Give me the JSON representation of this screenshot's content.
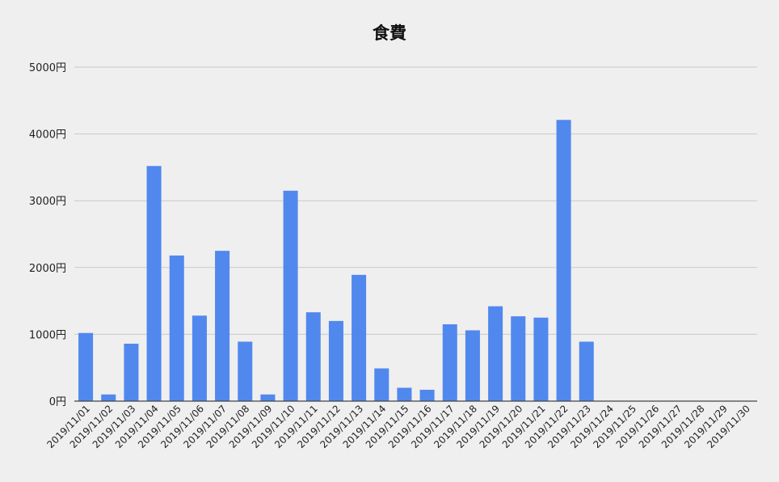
{
  "chart_data": {
    "type": "bar",
    "title": "食費",
    "xlabel": "",
    "ylabel": "",
    "ylim": [
      0,
      5000
    ],
    "y_ticks": [
      "0円",
      "1000円",
      "2000円",
      "3000円",
      "4000円",
      "5000円"
    ],
    "grid": true,
    "legend": "none",
    "bar_color": "#5188ee",
    "categories": [
      "2019/11/01",
      "2019/11/02",
      "2019/11/03",
      "2019/11/04",
      "2019/11/05",
      "2019/11/06",
      "2019/11/07",
      "2019/11/08",
      "2019/11/09",
      "2019/11/10",
      "2019/11/11",
      "2019/11/12",
      "2019/11/13",
      "2019/11/14",
      "2019/11/15",
      "2019/11/16",
      "2019/11/17",
      "2019/11/18",
      "2019/11/19",
      "2019/11/20",
      "2019/11/21",
      "2019/11/22",
      "2019/11/23",
      "2019/11/24",
      "2019/11/25",
      "2019/11/26",
      "2019/11/27",
      "2019/11/28",
      "2019/11/29",
      "2019/11/30"
    ],
    "values": [
      1020,
      100,
      860,
      3520,
      2180,
      1280,
      2250,
      890,
      100,
      3150,
      1330,
      1200,
      1890,
      490,
      200,
      170,
      1150,
      1060,
      1420,
      1270,
      1250,
      4210,
      890,
      0,
      0,
      0,
      0,
      0,
      0,
      0
    ]
  }
}
